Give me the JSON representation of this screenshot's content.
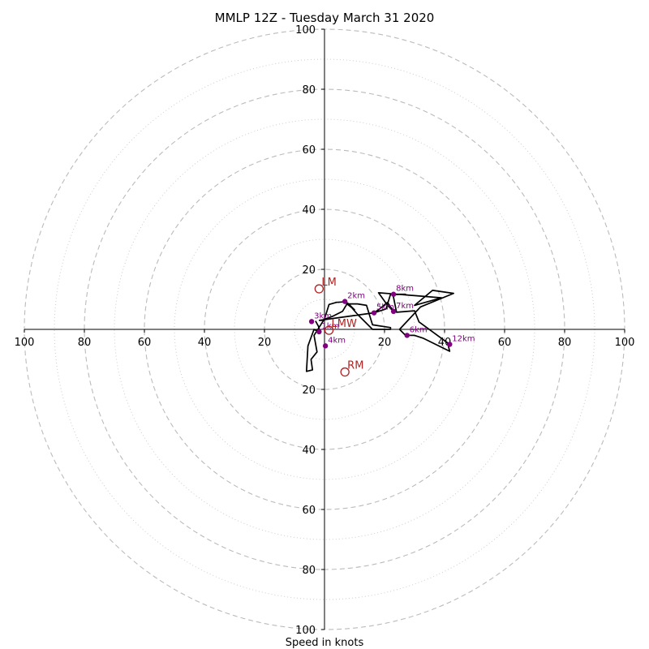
{
  "chart_data": {
    "type": "hodograph",
    "title": "MMLP 12Z - Tuesday March 31 2020",
    "xlabel": "Speed in knots",
    "ylabel": "",
    "units": "knots",
    "xlim": [
      -100,
      100
    ],
    "ylim": [
      -100,
      100
    ],
    "rings_major": [
      20,
      40,
      60,
      80,
      100
    ],
    "rings_minor": [
      10,
      30,
      50,
      70,
      90
    ],
    "x_tick_labels": [
      "100",
      "80",
      "60",
      "40",
      "20",
      "20",
      "40",
      "60",
      "80",
      "100"
    ],
    "y_tick_labels": [
      "100",
      "80",
      "60",
      "40",
      "20",
      "20",
      "40",
      "60",
      "80",
      "100"
    ],
    "grid": true,
    "trace": {
      "color": "#000000",
      "points": [
        [
          -3,
          2.8
        ],
        [
          -2,
          1
        ],
        [
          -1.5,
          -1
        ],
        [
          -3.5,
          0
        ],
        [
          -5.5,
          -5.5
        ],
        [
          -6,
          -14
        ],
        [
          -4,
          -13.5
        ],
        [
          -4.5,
          -10
        ],
        [
          -2.5,
          -7.5
        ],
        [
          -3.5,
          -2
        ],
        [
          0,
          3.5
        ],
        [
          1.5,
          8.3
        ],
        [
          4,
          9
        ],
        [
          7,
          9.2
        ],
        [
          8.5,
          8.2
        ],
        [
          6.8,
          9
        ],
        [
          10,
          6.5
        ],
        [
          8,
          8.5
        ],
        [
          11,
          5
        ],
        [
          16,
          0
        ],
        [
          22,
          0
        ],
        [
          22,
          0.6
        ],
        [
          16,
          1.5
        ],
        [
          14,
          8
        ],
        [
          11,
          8.5
        ],
        [
          7.5,
          8.5
        ],
        [
          6,
          6
        ],
        [
          3,
          4.5
        ],
        [
          -1,
          3
        ],
        [
          -1.7,
          3
        ],
        [
          16.4,
          5.5
        ],
        [
          18,
          6.5
        ],
        [
          21,
          9
        ],
        [
          23,
          6
        ],
        [
          21,
          8
        ],
        [
          18,
          12.2
        ],
        [
          23,
          11.8
        ],
        [
          39,
          10.5
        ],
        [
          30,
          8
        ],
        [
          36,
          13
        ],
        [
          43,
          12
        ],
        [
          32,
          7.5
        ],
        [
          25,
          0
        ],
        [
          27,
          -2
        ],
        [
          30,
          -2
        ],
        [
          33,
          -3
        ],
        [
          41.7,
          -7.3
        ],
        [
          41,
          -4.5
        ],
        [
          31.5,
          2.5
        ],
        [
          30,
          6.2
        ],
        [
          24,
          5.7
        ],
        [
          22.8,
          11.6
        ],
        [
          27,
          11.7
        ],
        [
          22,
          11.7
        ],
        [
          20.5,
          6.8
        ],
        [
          16.5,
          5.5
        ]
      ]
    },
    "height_markers": [
      {
        "label": "1km",
        "x": -1.8,
        "y": -0.8
      },
      {
        "label": "2km",
        "x": 6.8,
        "y": 9.3
      },
      {
        "label": "3km",
        "x": -4.3,
        "y": 2.6
      },
      {
        "label": "4km",
        "x": 0.3,
        "y": -5.5
      },
      {
        "label": "5km",
        "x": 16.5,
        "y": 5.5
      },
      {
        "label": "6km",
        "x": 27.5,
        "y": -2
      },
      {
        "label": "7km",
        "x": 23,
        "y": 6
      },
      {
        "label": "8km",
        "x": 23,
        "y": 11.7
      },
      {
        "label": "12km",
        "x": 41.7,
        "y": -5
      }
    ],
    "storm_motion": [
      {
        "label": "LM",
        "x": -1.8,
        "y": 13.5
      },
      {
        "label": "RM",
        "x": 6.8,
        "y": -14.2
      },
      {
        "label": "LMW",
        "x": 1.5,
        "y": -0.3
      }
    ],
    "marker_color": "#800080",
    "motion_color": "#b22222"
  }
}
